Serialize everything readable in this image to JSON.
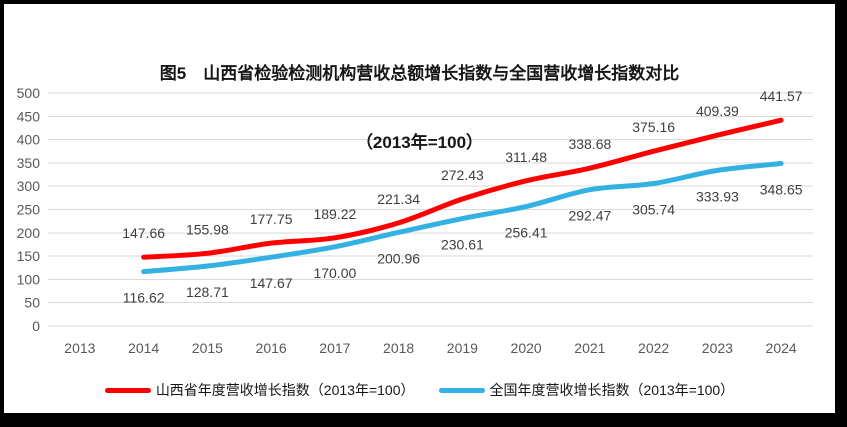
{
  "frame": {
    "border_color": "#000000",
    "background": "#ffffff"
  },
  "chart_data": {
    "type": "line",
    "title": "图5　山西省检验检测机构营收总额增长指数与全国营收增长指数对比",
    "subtitle": "（2013年=100）",
    "categories": [
      "2013",
      "2014",
      "2015",
      "2016",
      "2017",
      "2018",
      "2019",
      "2020",
      "2021",
      "2022",
      "2023",
      "2024"
    ],
    "series": [
      {
        "key": "shanxi",
        "name": "山西省年度营收增长指数（2013年=100）",
        "color": "#FF0000",
        "start_index": 1,
        "values": [
          147.66,
          155.98,
          177.75,
          189.22,
          221.34,
          272.43,
          311.48,
          338.68,
          375.16,
          409.39,
          441.57
        ],
        "labels": [
          "147.66",
          "155.98",
          "177.75",
          "189.22",
          "221.34",
          "272.43",
          "311.48",
          "338.68",
          "375.16",
          "409.39",
          "441.57"
        ],
        "label_side": "above"
      },
      {
        "key": "national",
        "name": "全国年度营收增长指数（2013年=100）",
        "color": "#33B1E2",
        "start_index": 1,
        "values": [
          116.62,
          128.71,
          147.67,
          170.0,
          200.96,
          230.61,
          256.41,
          292.47,
          305.74,
          333.93,
          348.65
        ],
        "labels": [
          "116.62",
          "128.71",
          "147.67",
          "170.00",
          "200.96",
          "230.61",
          "256.41",
          "292.47",
          "305.74",
          "333.93",
          "348.65"
        ],
        "label_side": "below"
      }
    ],
    "y_ticks": [
      0,
      50,
      100,
      150,
      200,
      250,
      300,
      350,
      400,
      450,
      500
    ],
    "ylim": [
      0,
      500
    ],
    "grid": true,
    "gridline_color": "#D9D9D9",
    "tick_label_color": "#595959",
    "data_label_color": "#3F3F3F",
    "legend_position": "bottom"
  }
}
